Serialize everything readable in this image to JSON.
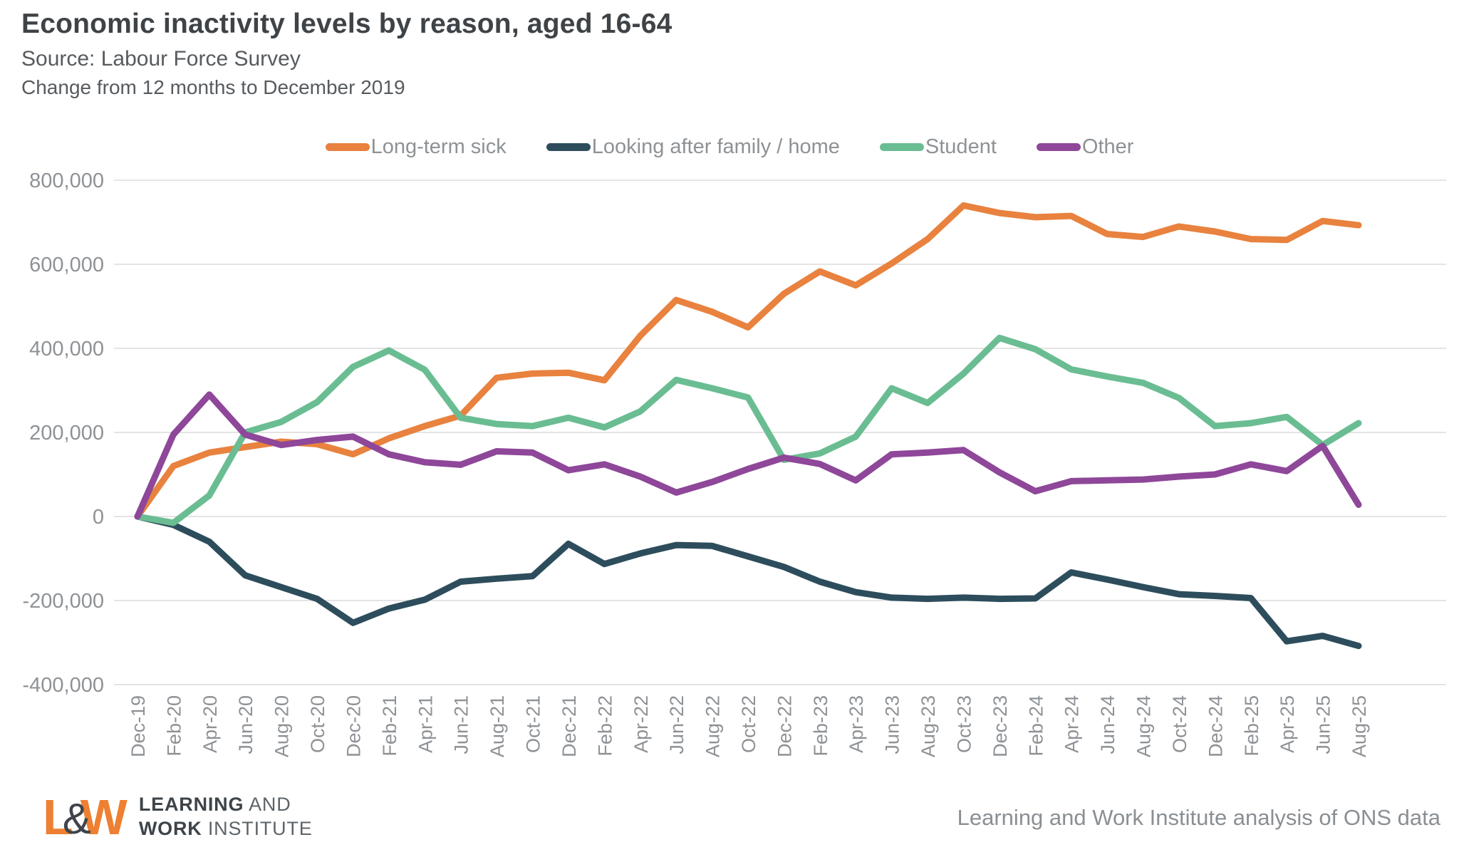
{
  "header": {
    "title": "Economic inactivity levels by reason, aged 16-64",
    "source": "Source: Labour Force Survey",
    "subtitle": "Change from 12 months to December 2019"
  },
  "chart_data": {
    "type": "line",
    "title": "Economic inactivity levels by reason, aged 16-64",
    "xlabel": "",
    "ylabel": "",
    "ylim": [
      -400000,
      800000
    ],
    "ytick_step": 200000,
    "grid": true,
    "legend_position": "top",
    "categories": [
      "Dec-19",
      "Feb-20",
      "Apr-20",
      "Jun-20",
      "Aug-20",
      "Oct-20",
      "Dec-20",
      "Feb-21",
      "Apr-21",
      "Jun-21",
      "Aug-21",
      "Oct-21",
      "Dec-21",
      "Feb-22",
      "Apr-22",
      "Jun-22",
      "Aug-22",
      "Oct-22",
      "Dec-22",
      "Feb-23",
      "Apr-23",
      "Jun-23",
      "Aug-23",
      "Oct-23",
      "Dec-23",
      "Feb-24",
      "Apr-24",
      "Jun-24",
      "Aug-24",
      "Oct-24",
      "Dec-24",
      "Feb-25",
      "Apr-25",
      "Jun-25",
      "Aug-25"
    ],
    "series": [
      {
        "name": "Long-term sick",
        "color": "#e8823e",
        "values": [
          0,
          120000,
          152000,
          165000,
          178000,
          172000,
          148000,
          186000,
          215000,
          240000,
          330000,
          340000,
          342000,
          324000,
          430000,
          515000,
          487000,
          450000,
          530000,
          583000,
          550000,
          602000,
          660000,
          740000,
          722000,
          712000,
          715000,
          672000,
          665000,
          690000,
          678000,
          660000,
          658000,
          703000,
          693000
        ]
      },
      {
        "name": "Looking after family / home",
        "color": "#2d4d5c",
        "values": [
          0,
          -20000,
          -60000,
          -140000,
          -168000,
          -196000,
          -253000,
          -219000,
          -198000,
          -155000,
          -148000,
          -142000,
          -65000,
          -113000,
          -88000,
          -68000,
          -70000,
          -95000,
          -120000,
          -155000,
          -180000,
          -193000,
          -196000,
          -193000,
          -196000,
          -195000,
          -133000,
          -150000,
          -168000,
          -185000,
          -189000,
          -194000,
          -297000,
          -284000,
          -308000
        ]
      },
      {
        "name": "Student",
        "color": "#6abd92",
        "values": [
          0,
          -15000,
          50000,
          200000,
          225000,
          272000,
          356000,
          395000,
          349000,
          235000,
          220000,
          215000,
          235000,
          212000,
          250000,
          325000,
          305000,
          283000,
          135000,
          150000,
          190000,
          305000,
          270000,
          340000,
          425000,
          398000,
          350000,
          333000,
          318000,
          282000,
          215000,
          222000,
          237000,
          170000,
          222000
        ]
      },
      {
        "name": "Other",
        "color": "#8e4799",
        "values": [
          0,
          195000,
          290000,
          195000,
          170000,
          182000,
          190000,
          148000,
          129000,
          123000,
          155000,
          152000,
          110000,
          124000,
          95000,
          57000,
          82000,
          113000,
          140000,
          125000,
          86000,
          148000,
          152000,
          158000,
          105000,
          60000,
          84000,
          86000,
          88000,
          95000,
          100000,
          124000,
          108000,
          168000,
          28000
        ]
      }
    ]
  },
  "footer": {
    "logo": {
      "letter_l": "L",
      "ampersand": "&",
      "letter_w": "W",
      "name_line1_strong": "LEARNING",
      "name_line1_light": " AND",
      "name_line2_strong": "WORK",
      "name_line2_light": " INSTITUTE"
    },
    "attribution": "Learning and Work Institute analysis of ONS data"
  }
}
